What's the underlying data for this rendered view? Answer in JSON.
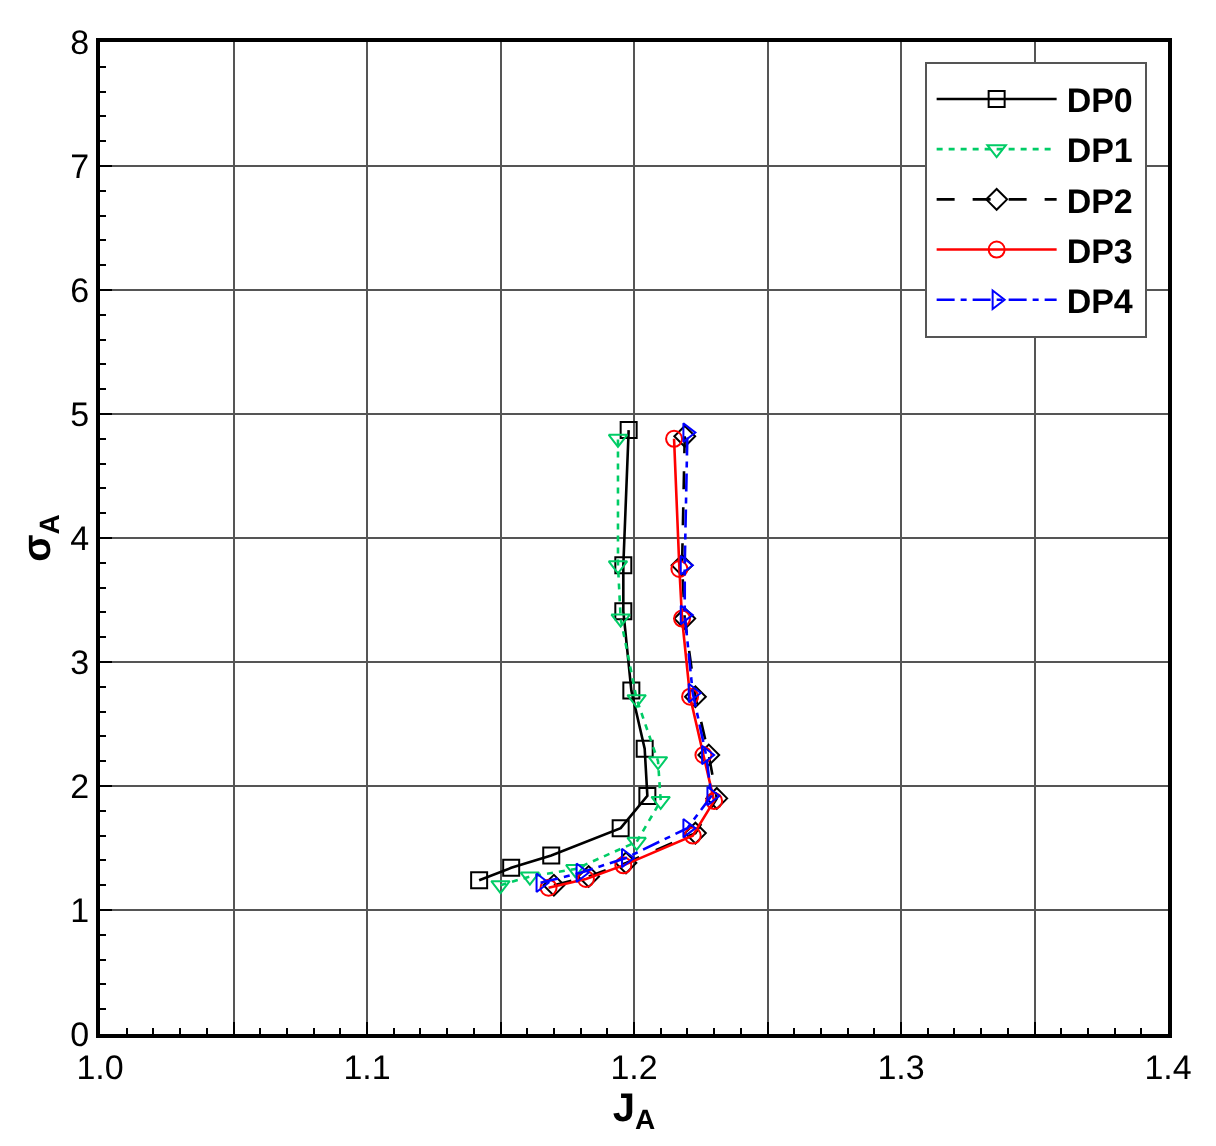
{
  "chart_data": {
    "type": "line",
    "xlabel": "J$_{A}$",
    "ylabel": "σ$_{A}$",
    "xlim": [
      1.0,
      1.4
    ],
    "ylim": [
      0,
      8
    ],
    "xticks": [
      {
        "value": 1.0,
        "label": "1.0"
      },
      {
        "value": 1.05,
        "label": null
      },
      1.1,
      {
        "value": 1.15,
        "label": null
      },
      1.2,
      {
        "value": 1.25,
        "label": null
      },
      1.3,
      {
        "value": 1.35,
        "label": null
      },
      1.4
    ],
    "yticks": [
      0,
      1,
      2,
      3,
      4,
      5,
      6,
      7,
      8
    ],
    "grid": true,
    "legend": "top right",
    "series": [
      {
        "name": "DP0",
        "color": "#000000",
        "marker": "square",
        "line_style": "solid",
        "x": [
          1.142,
          1.154,
          1.169,
          1.195,
          1.205,
          1.204,
          1.199,
          1.196,
          1.196,
          1.198
        ],
        "values": [
          1.24,
          1.34,
          1.44,
          1.66,
          1.92,
          2.3,
          2.77,
          3.41,
          3.78,
          4.87
        ]
      },
      {
        "name": "DP1",
        "color": "#00cc66",
        "marker": "triangle-down",
        "line_style": "dotted",
        "x": [
          1.15,
          1.161,
          1.178,
          1.201,
          1.21,
          1.209,
          1.201,
          1.195,
          1.194,
          1.194
        ],
        "values": [
          1.2,
          1.27,
          1.33,
          1.55,
          1.88,
          2.2,
          2.7,
          3.35,
          3.78,
          4.8
        ]
      },
      {
        "name": "DP2",
        "color": "#000000",
        "marker": "diamond",
        "line_style": "dashed",
        "x": [
          1.17,
          1.183,
          1.197,
          1.223,
          1.231,
          1.228,
          1.223,
          1.219,
          1.218,
          1.219
        ],
        "values": [
          1.2,
          1.27,
          1.38,
          1.62,
          1.9,
          2.25,
          2.72,
          3.35,
          3.78,
          4.82
        ]
      },
      {
        "name": "DP3",
        "color": "#ff0000",
        "marker": "circle",
        "line_style": "solid",
        "x": [
          1.168,
          1.182,
          1.196,
          1.222,
          1.23,
          1.226,
          1.221,
          1.218,
          1.217,
          1.215
        ],
        "values": [
          1.18,
          1.25,
          1.36,
          1.6,
          1.88,
          2.25,
          2.72,
          3.35,
          3.75,
          4.8
        ]
      },
      {
        "name": "DP4",
        "color": "#0000ff",
        "marker": "triangle-right",
        "line_style": "dashdot",
        "x": [
          1.165,
          1.18,
          1.197,
          1.22,
          1.229,
          1.227,
          1.222,
          1.219,
          1.219,
          1.22
        ],
        "values": [
          1.22,
          1.3,
          1.42,
          1.66,
          1.92,
          2.25,
          2.75,
          3.38,
          3.78,
          4.85
        ]
      }
    ]
  }
}
